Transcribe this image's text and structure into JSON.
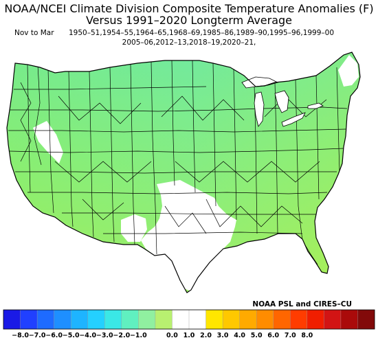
{
  "title_line1": "NOAA/NCEI Climate Division Composite Temperature Anomalies (F)",
  "title_line2": "Versus 1991–2020 Longterm Average",
  "period": "Nov to Mar",
  "years_line1": "1950–51,1954–55,1964–65,1968–69,1985–86,1989–90,1995–96,1999–00",
  "years_line2": "2005–06,2012–13,2018–19,2020–21,",
  "credit": "NOAA PSL and CIRES–CU",
  "legend": {
    "tick_labels": [
      "−8.0",
      "−7.0",
      "−6.0",
      "−5.0",
      "−4.0",
      "−3.0",
      "−2.0",
      "−1.0",
      "0.0",
      "1.0",
      "2.0",
      "3.0",
      "4.0",
      "5.0",
      "6.0",
      "7.0",
      "8.0"
    ],
    "colors": [
      "#1a1ae6",
      "#2040ff",
      "#1e6bff",
      "#1e8fff",
      "#1eb4ff",
      "#24d0ff",
      "#3ae8e6",
      "#60f0c0",
      "#90f0a0",
      "#b8f070",
      "#ffffff",
      "#ffffff",
      "#ffe600",
      "#ffc800",
      "#ffaa00",
      "#ff8c00",
      "#ff6600",
      "#ff3c00",
      "#f01e00",
      "#d21414",
      "#aa0a0a",
      "#820a0a"
    ]
  },
  "regions": {
    "northwest_color": "#7ee86a",
    "north_central_color": "#6ee8a6",
    "great_lakes_color": "#78e8a0",
    "south_central_color": "#aaf05a",
    "east_color": "#a8ef50",
    "neutral_color": "#ffffff"
  }
}
